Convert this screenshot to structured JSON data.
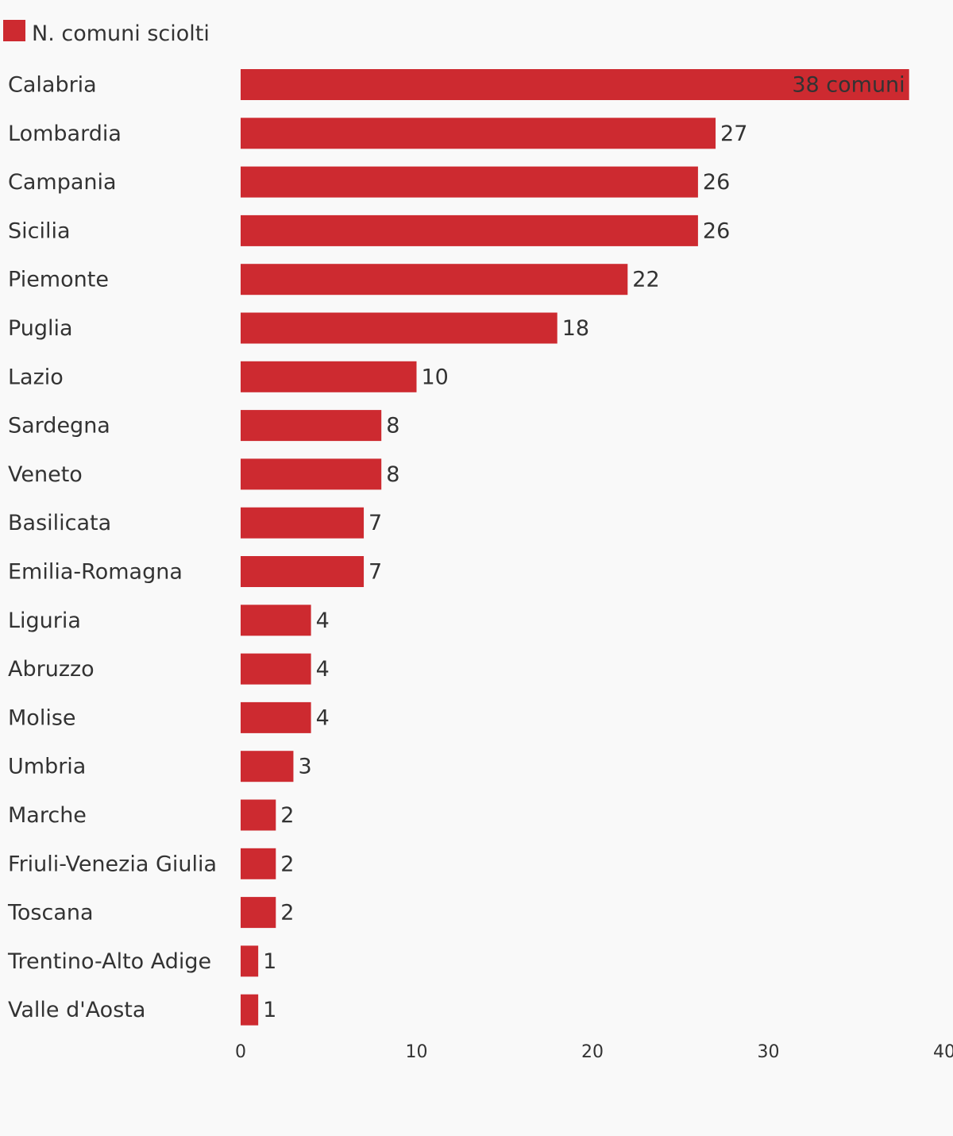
{
  "chart_data": {
    "type": "bar",
    "orientation": "horizontal",
    "title": "",
    "xlabel": "",
    "ylabel": "",
    "xlim": [
      0,
      40
    ],
    "x_ticks": [
      0,
      10,
      20,
      30,
      40
    ],
    "grid": false,
    "legend_position": "top-left",
    "colors": {
      "bar": "#cd2a30",
      "text": "#333333",
      "background": "#f9f9f9"
    },
    "categories": [
      "Calabria",
      "Lombardia",
      "Campania",
      "Sicilia",
      "Piemonte",
      "Puglia",
      "Lazio",
      "Sardegna",
      "Veneto",
      "Basilicata",
      "Emilia-Romagna",
      "Liguria",
      "Abruzzo",
      "Molise",
      "Umbria",
      "Marche",
      "Friuli-Venezia Giulia",
      "Toscana",
      "Trentino-Alto Adige",
      "Valle d'Aosta"
    ],
    "series": [
      {
        "name": "N. comuni sciolti",
        "values": [
          38,
          27,
          26,
          26,
          22,
          18,
          10,
          8,
          8,
          7,
          7,
          4,
          4,
          4,
          3,
          2,
          2,
          2,
          1,
          1
        ],
        "value_labels": [
          "38 comuni",
          "27",
          "26",
          "26",
          "22",
          "18",
          "10",
          "8",
          "8",
          "7",
          "7",
          "4",
          "4",
          "4",
          "3",
          "2",
          "2",
          "2",
          "1",
          "1"
        ]
      }
    ]
  }
}
